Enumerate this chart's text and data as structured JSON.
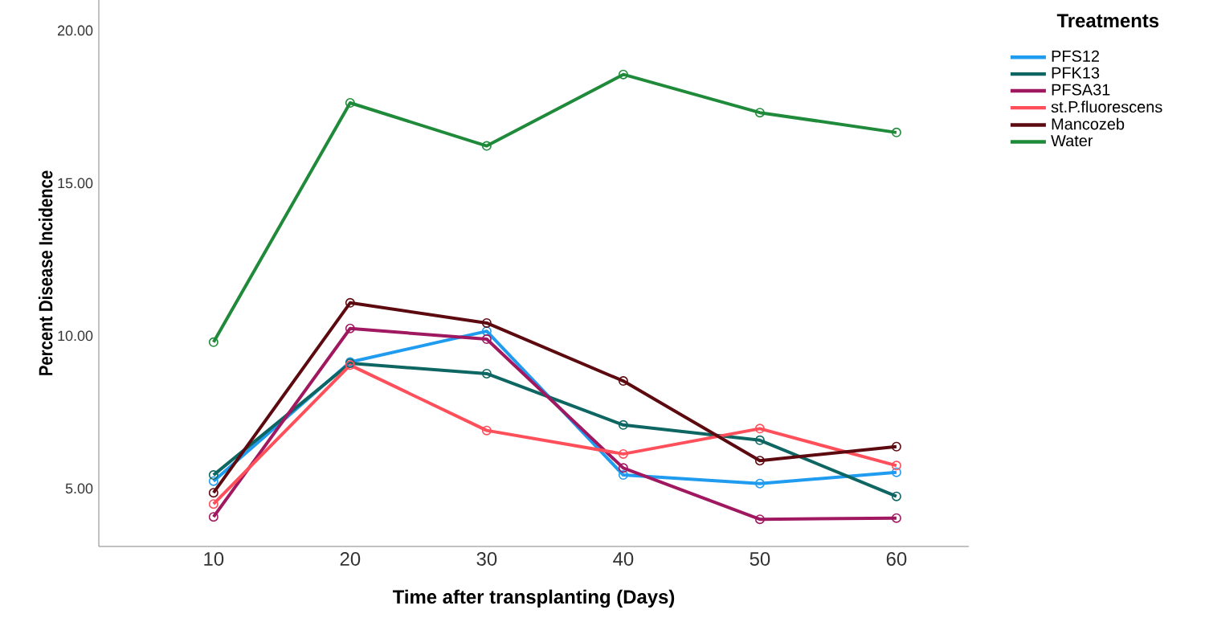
{
  "chart_data": {
    "type": "line",
    "xlabel": "Time after transplanting (Days)",
    "ylabel": "Percent Disease Incidence",
    "legend_title": "Treatments",
    "x": [
      10,
      20,
      30,
      40,
      50,
      60
    ],
    "xlim": [
      1.6,
      65.3
    ],
    "xticks": [
      10,
      20,
      30,
      40,
      50,
      60
    ],
    "ylim": [
      3.1,
      21
    ],
    "yticks": [
      {
        "value": 5,
        "label": "5.00"
      },
      {
        "value": 10,
        "label": "10.00"
      },
      {
        "value": 15,
        "label": "15.00"
      },
      {
        "value": 20,
        "label": "20.00"
      }
    ],
    "grid": false,
    "legend": "top right",
    "marker": "circle",
    "line_style": "solid",
    "series": [
      {
        "name": "PFS12",
        "color": "#1f9bef",
        "values": [
          5.24,
          9.14,
          10.15,
          5.44,
          5.16,
          5.53
        ]
      },
      {
        "name": "PFK13",
        "color": "#0e6663",
        "values": [
          5.44,
          9.1,
          8.76,
          7.08,
          6.58,
          4.74
        ]
      },
      {
        "name": "PFSA31",
        "color": "#a0185f",
        "values": [
          4.07,
          10.24,
          9.89,
          5.67,
          3.99,
          4.03
        ]
      },
      {
        "name": "st.P.fluorescens",
        "color": "#ff4f5a",
        "values": [
          4.49,
          9.04,
          6.9,
          6.13,
          6.96,
          5.75
        ]
      },
      {
        "name": "Mancozeb",
        "color": "#5c0a0f",
        "values": [
          4.86,
          11.08,
          10.42,
          8.52,
          5.91,
          6.37
        ]
      },
      {
        "name": "Water",
        "color": "#1f8a3a",
        "values": [
          9.79,
          17.63,
          16.22,
          18.56,
          17.31,
          16.66
        ]
      }
    ]
  }
}
